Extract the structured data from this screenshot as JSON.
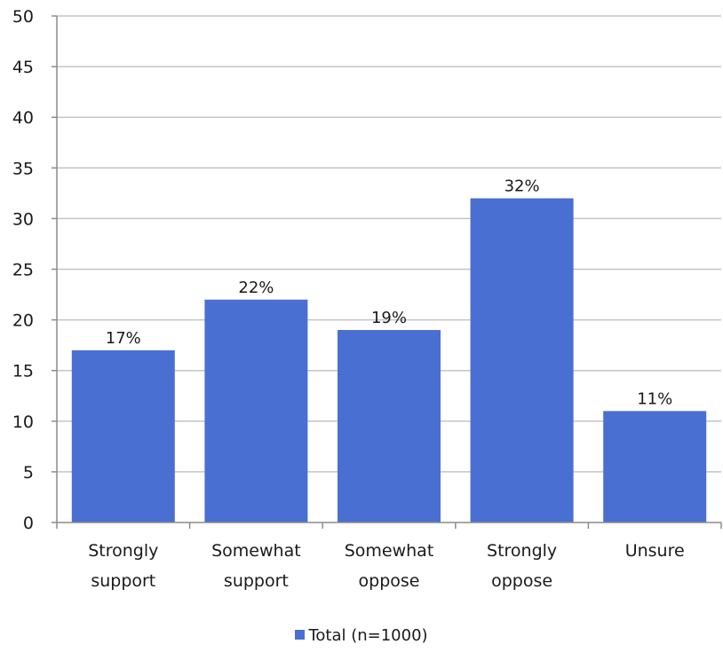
{
  "chart_data": {
    "type": "bar",
    "categories": [
      [
        "Strongly",
        "support"
      ],
      [
        "Somewhat",
        "support"
      ],
      [
        "Somewhat",
        "oppose"
      ],
      [
        "Strongly",
        "oppose"
      ],
      [
        "Unsure"
      ]
    ],
    "series": [
      {
        "name": "Total (n=1000)",
        "values": [
          17,
          22,
          19,
          32,
          11
        ],
        "data_labels": [
          "17%",
          "22%",
          "19%",
          "32%",
          "11%"
        ],
        "color": "#4a6fd3"
      }
    ],
    "yticks": [
      "0",
      "5",
      "10",
      "15",
      "20",
      "25",
      "30",
      "35",
      "40",
      "45",
      "50"
    ],
    "ylim": [
      0,
      50
    ],
    "grid": true,
    "legend_position": "bottom",
    "gridline_color": "#c4c4c4",
    "axis_color": "#8c8c8c"
  }
}
